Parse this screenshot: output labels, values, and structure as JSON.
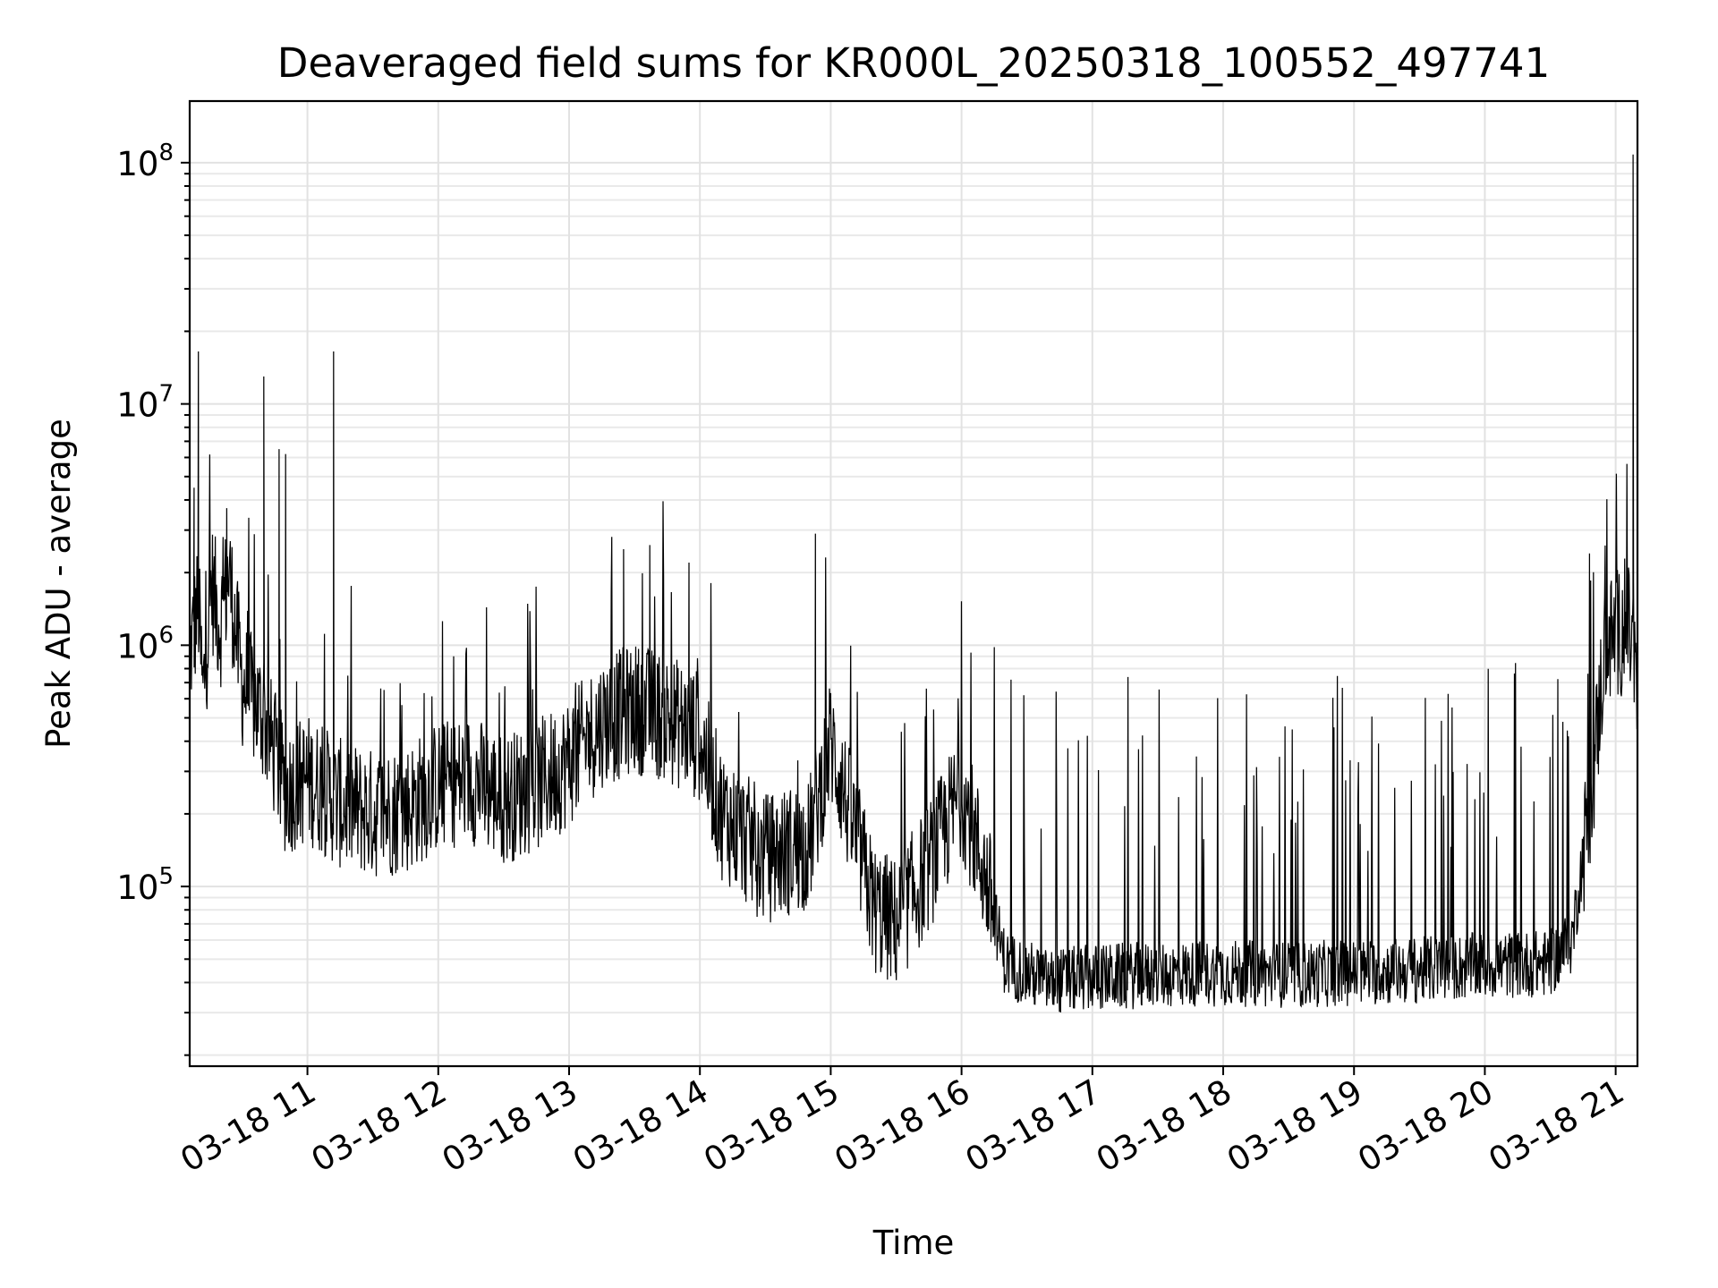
{
  "chart_data": {
    "type": "line",
    "title": "Deaveraged field sums for KR000L_20250318_100552_497741",
    "xlabel": "Time",
    "ylabel": "Peak ADU - average",
    "yscale": "log",
    "grid": true,
    "x_tick_labels": [
      "03-18 11",
      "03-18 12",
      "03-18 13",
      "03-18 14",
      "03-18 15",
      "03-18 16",
      "03-18 17",
      "03-18 18",
      "03-18 19",
      "03-18 20",
      "03-18 21"
    ],
    "y_tick_labels": [
      {
        "base": "10",
        "exp": "5"
      },
      {
        "base": "10",
        "exp": "6"
      },
      {
        "base": "10",
        "exp": "7"
      },
      {
        "base": "10",
        "exp": "8"
      }
    ],
    "xlim": [
      "03-18 10:06",
      "03-18 21:10"
    ],
    "ylim": [
      18000,
      180000000
    ],
    "series": [
      {
        "color": "#000000",
        "points": [
          [
            "03-18 10:06",
            900000
          ],
          [
            "03-18 10:10",
            1500000
          ],
          [
            "03-18 10:12",
            600000
          ],
          [
            "03-18 10:16",
            1800000
          ],
          [
            "03-18 10:20",
            1200000
          ],
          [
            "03-18 10:24",
            2000000
          ],
          [
            "03-18 10:30",
            700000
          ],
          [
            "03-18 10:40",
            500000
          ],
          [
            "03-18 10:50",
            250000
          ],
          [
            "03-18 11:00",
            280000
          ],
          [
            "03-18 11:15",
            220000
          ],
          [
            "03-18 11:30",
            200000
          ],
          [
            "03-18 11:45",
            210000
          ],
          [
            "03-18 12:00",
            260000
          ],
          [
            "03-18 12:15",
            280000
          ],
          [
            "03-18 12:30",
            230000
          ],
          [
            "03-18 12:45",
            260000
          ],
          [
            "03-18 13:00",
            330000
          ],
          [
            "03-18 13:15",
            480000
          ],
          [
            "03-18 13:30",
            550000
          ],
          [
            "03-18 13:45",
            500000
          ],
          [
            "03-18 14:00",
            420000
          ],
          [
            "03-18 14:10",
            200000
          ],
          [
            "03-18 14:30",
            130000
          ],
          [
            "03-18 14:50",
            150000
          ],
          [
            "03-18 15:00",
            400000
          ],
          [
            "03-18 15:10",
            180000
          ],
          [
            "03-18 15:20",
            80000
          ],
          [
            "03-18 15:30",
            70000
          ],
          [
            "03-18 15:45",
            120000
          ],
          [
            "03-18 16:00",
            250000
          ],
          [
            "03-18 16:10",
            120000
          ],
          [
            "03-18 16:20",
            48000
          ],
          [
            "03-18 16:40",
            40000
          ],
          [
            "03-18 17:00",
            42000
          ],
          [
            "03-18 17:30",
            43000
          ],
          [
            "03-18 18:00",
            44000
          ],
          [
            "03-18 18:30",
            43000
          ],
          [
            "03-18 19:00",
            44000
          ],
          [
            "03-18 19:30",
            45000
          ],
          [
            "03-18 20:00",
            47000
          ],
          [
            "03-18 20:30",
            48000
          ],
          [
            "03-18 20:40",
            60000
          ],
          [
            "03-18 20:50",
            300000
          ],
          [
            "03-18 20:55",
            1000000
          ],
          [
            "03-18 21:00",
            1100000
          ],
          [
            "03-18 21:05",
            1200000
          ],
          [
            "03-18 21:08",
            1000000
          ],
          [
            "03-18 21:10",
            500000
          ]
        ],
        "spikes": [
          [
            "03-18 10:10",
            16500000
          ],
          [
            "03-18 10:08",
            4500000
          ],
          [
            "03-18 10:23",
            3700000
          ],
          [
            "03-18 10:40",
            13000000
          ],
          [
            "03-18 10:47",
            6500000
          ],
          [
            "03-18 10:50",
            6200000
          ],
          [
            "03-18 11:12",
            16500000
          ],
          [
            "03-18 13:25",
            2500000
          ],
          [
            "03-18 13:37",
            2600000
          ],
          [
            "03-18 13:55",
            2200000
          ],
          [
            "03-18 14:53",
            2900000
          ],
          [
            "03-18 20:48",
            2400000
          ],
          [
            "03-18 21:08",
            108000000
          ]
        ]
      }
    ]
  }
}
